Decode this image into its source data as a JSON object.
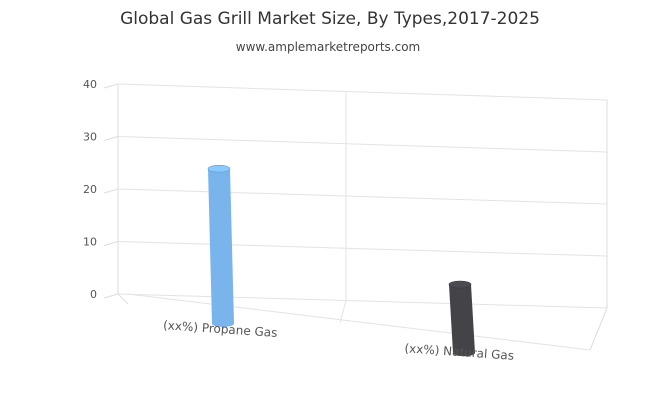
{
  "chart_data": {
    "type": "bar",
    "title": "Global Gas Grill Market Size, By Types,2017-2025",
    "subtitle": "www.amplemarketreports.com",
    "categories": [
      "(xx%) Propane Gas",
      "(xx%) Natural Gas"
    ],
    "series": [
      {
        "values": [
          28,
          12
        ]
      }
    ],
    "ylim": [
      0,
      40
    ],
    "yticks": [
      0,
      10,
      20,
      30,
      40
    ],
    "colors": [
      "#7ab4ec",
      "#434348"
    ],
    "grid": true,
    "legend": "none"
  }
}
